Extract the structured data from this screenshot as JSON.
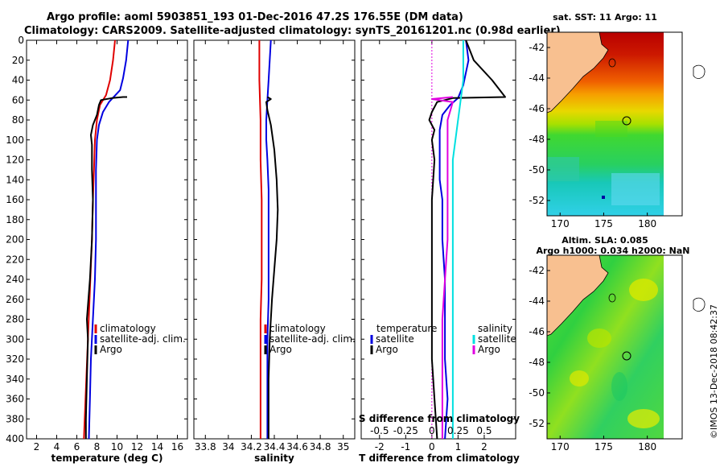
{
  "header": {
    "title_line1": "Argo profile: aoml 5903851_193 01-Dec-2016 47.2S 176.55E (DM data)",
    "title_line2": "Climatology: CARS2009. Satellite-adjusted climatology: synTS_20161201.nc (0.98d earlier)"
  },
  "side_stamp": "©IMOS 13-Dec-2018 08:42:37",
  "colors": {
    "climatology": "#e00000",
    "satellite": "#0000e0",
    "argo": "#000000",
    "sal_satellite": "#00e0e0",
    "sal_argo": "#e000e0"
  },
  "chart_data": [
    {
      "type": "line",
      "name": "temperature-profile",
      "xlabel": "temperature (deg C)",
      "ylabel": "",
      "xlim": [
        1,
        17
      ],
      "ylim": [
        400,
        0
      ],
      "xticks": [
        2,
        4,
        6,
        8,
        10,
        12,
        14,
        16
      ],
      "yticks": [
        0,
        20,
        40,
        60,
        80,
        100,
        120,
        140,
        160,
        180,
        200,
        220,
        240,
        260,
        280,
        300,
        320,
        340,
        360,
        380,
        400
      ],
      "legend": [
        "climatology",
        "satellite-adj. clim.",
        "Argo"
      ],
      "series": [
        {
          "name": "climatology",
          "color": "#e00000",
          "points": [
            [
              9.8,
              0
            ],
            [
              9.6,
              20
            ],
            [
              9.3,
              40
            ],
            [
              8.9,
              55
            ],
            [
              8.3,
              65
            ],
            [
              8.0,
              80
            ],
            [
              7.8,
              100
            ],
            [
              7.7,
              130
            ],
            [
              7.6,
              160
            ],
            [
              7.5,
              200
            ],
            [
              7.3,
              250
            ],
            [
              7.1,
              300
            ],
            [
              6.9,
              350
            ],
            [
              6.7,
              400
            ]
          ]
        },
        {
          "name": "satellite-adj. clim.",
          "color": "#0000e0",
          "points": [
            [
              11.1,
              0
            ],
            [
              10.9,
              20
            ],
            [
              10.6,
              38
            ],
            [
              10.3,
              50
            ],
            [
              9.2,
              62
            ],
            [
              8.6,
              72
            ],
            [
              8.2,
              85
            ],
            [
              8.0,
              100
            ],
            [
              7.9,
              130
            ],
            [
              7.9,
              160
            ],
            [
              7.9,
              200
            ],
            [
              7.8,
              240
            ],
            [
              7.6,
              280
            ],
            [
              7.4,
              320
            ],
            [
              7.3,
              360
            ],
            [
              7.2,
              400
            ]
          ]
        },
        {
          "name": "Argo",
          "color": "#000000",
          "points": [
            [
              11.0,
              57
            ],
            [
              10.6,
              57
            ],
            [
              9.5,
              58
            ],
            [
              8.4,
              60
            ],
            [
              8.2,
              65
            ],
            [
              8.0,
              75
            ],
            [
              7.6,
              85
            ],
            [
              7.4,
              95
            ],
            [
              7.5,
              105
            ],
            [
              7.5,
              130
            ],
            [
              7.6,
              160
            ],
            [
              7.5,
              200
            ],
            [
              7.3,
              240
            ],
            [
              7.0,
              280
            ],
            [
              7.1,
              300
            ],
            [
              7.0,
              340
            ],
            [
              6.9,
              380
            ],
            [
              6.9,
              400
            ]
          ]
        }
      ]
    },
    {
      "type": "line",
      "name": "salinity-profile",
      "xlabel": "salinity",
      "xlim": [
        33.7,
        35.1
      ],
      "ylim": [
        400,
        0
      ],
      "xticks": [
        33.8,
        34,
        34.2,
        34.4,
        34.6,
        34.8,
        35
      ],
      "xtick_labels": [
        "33.8",
        "34",
        "34.2",
        "34.4",
        "34.6",
        "34.8",
        "35"
      ],
      "legend": [
        "climatology",
        "satellite-adj. clim.",
        "Argo"
      ],
      "series": [
        {
          "name": "climatology",
          "color": "#e00000",
          "points": [
            [
              34.27,
              0
            ],
            [
              34.27,
              40
            ],
            [
              34.28,
              80
            ],
            [
              34.28,
              120
            ],
            [
              34.29,
              160
            ],
            [
              34.29,
              200
            ],
            [
              34.29,
              240
            ],
            [
              34.28,
              280
            ],
            [
              34.28,
              320
            ],
            [
              34.28,
              360
            ],
            [
              34.28,
              400
            ]
          ]
        },
        {
          "name": "satellite-adj. clim.",
          "color": "#0000e0",
          "points": [
            [
              34.37,
              0
            ],
            [
              34.36,
              20
            ],
            [
              34.35,
              40
            ],
            [
              34.34,
              60
            ],
            [
              34.33,
              80
            ],
            [
              34.33,
              100
            ],
            [
              34.34,
              120
            ],
            [
              34.35,
              150
            ],
            [
              34.35,
              180
            ],
            [
              34.35,
              220
            ],
            [
              34.35,
              260
            ],
            [
              34.34,
              300
            ],
            [
              34.34,
              340
            ],
            [
              34.34,
              380
            ],
            [
              34.34,
              400
            ]
          ]
        },
        {
          "name": "Argo",
          "color": "#000000",
          "points": [
            [
              34.34,
              57
            ],
            [
              34.37,
              59
            ],
            [
              34.33,
              62
            ],
            [
              34.34,
              70
            ],
            [
              34.37,
              85
            ],
            [
              34.4,
              110
            ],
            [
              34.42,
              140
            ],
            [
              34.43,
              170
            ],
            [
              34.42,
              200
            ],
            [
              34.4,
              230
            ],
            [
              34.38,
              260
            ],
            [
              34.36,
              300
            ],
            [
              34.35,
              340
            ],
            [
              34.35,
              380
            ],
            [
              34.35,
              400
            ]
          ]
        }
      ]
    },
    {
      "type": "line",
      "name": "difference-from-climatology",
      "xlabel": "T difference from climatology",
      "xlabel_top": "S difference from climatology",
      "xlim": [
        -2.7,
        3.2
      ],
      "ylim": [
        400,
        0
      ],
      "xticks": [
        -2,
        -1,
        0,
        1,
        2
      ],
      "xtick_labels": [
        "-2",
        "-1",
        "0",
        "1",
        "2"
      ],
      "sticks_labels": [
        "-0.5",
        "-0.25",
        "0",
        "0.25",
        "0.5"
      ],
      "legend_left_title": "temperature",
      "legend_right_title": "salinity",
      "legend_left": [
        "satellite",
        "Argo"
      ],
      "legend_right": [
        "satellite",
        "Argo"
      ],
      "series": [
        {
          "name": "temperature satellite",
          "color": "#0000e0",
          "points": [
            [
              1.3,
              0
            ],
            [
              1.4,
              20
            ],
            [
              1.2,
              45
            ],
            [
              1.0,
              58
            ],
            [
              0.7,
              65
            ],
            [
              0.4,
              75
            ],
            [
              0.3,
              90
            ],
            [
              0.3,
              110
            ],
            [
              0.3,
              140
            ],
            [
              0.4,
              160
            ],
            [
              0.4,
              200
            ],
            [
              0.5,
              240
            ],
            [
              0.5,
              280
            ],
            [
              0.5,
              320
            ],
            [
              0.6,
              360
            ],
            [
              0.5,
              400
            ]
          ]
        },
        {
          "name": "temperature Argo",
          "color": "#000000",
          "points": [
            [
              1.3,
              0
            ],
            [
              1.6,
              20
            ],
            [
              2.3,
              40
            ],
            [
              2.8,
              57
            ],
            [
              0.8,
              58
            ],
            [
              0.2,
              62
            ],
            [
              0.0,
              72
            ],
            [
              -0.1,
              80
            ],
            [
              0.1,
              90
            ],
            [
              0.0,
              100
            ],
            [
              0.1,
              120
            ],
            [
              0.0,
              160
            ],
            [
              0.0,
              200
            ],
            [
              0.0,
              240
            ],
            [
              0.0,
              280
            ],
            [
              0.0,
              320
            ],
            [
              0.1,
              360
            ],
            [
              0.2,
              400
            ]
          ]
        },
        {
          "name": "salinity satellite",
          "color": "#00e0e0",
          "points": [
            [
              0.3,
              0
            ],
            [
              0.3,
              40
            ],
            [
              0.25,
              80
            ],
            [
              0.2,
              120
            ],
            [
              0.2,
              160
            ],
            [
              0.2,
              200
            ],
            [
              0.2,
              240
            ],
            [
              0.2,
              280
            ],
            [
              0.2,
              320
            ],
            [
              0.2,
              360
            ],
            [
              0.2,
              400
            ]
          ]
        },
        {
          "name": "salinity Argo",
          "color": "#e000e0",
          "points": [
            [
              0.2,
              57
            ],
            [
              0.0,
              59
            ],
            [
              0.2,
              62
            ],
            [
              0.15,
              80
            ],
            [
              0.15,
              120
            ],
            [
              0.15,
              200
            ],
            [
              0.1,
              280
            ],
            [
              0.1,
              400
            ]
          ]
        }
      ]
    }
  ],
  "maps": {
    "sst_title": "sat. SST: 11 Argo: 11",
    "sla_title1": "Altim. SLA: 0.085",
    "sla_title2": "Argo h1000: 0.034 h2000: NaN",
    "xticks": [
      170,
      175,
      180
    ],
    "yticks": [
      -42,
      -44,
      -46,
      -48,
      -50,
      -52
    ],
    "lon_range": [
      168.5,
      184
    ],
    "lat_range": [
      -53,
      -41
    ]
  }
}
